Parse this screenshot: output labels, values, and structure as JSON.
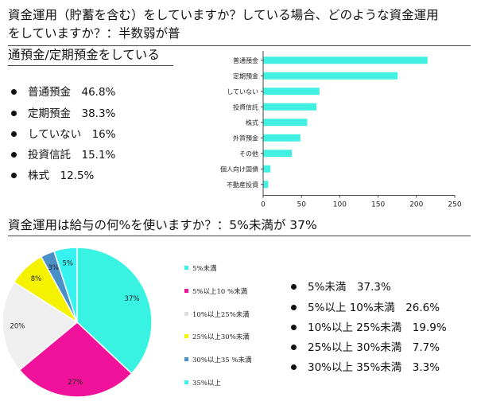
{
  "section1": {
    "heading_lines": [
      "資金運用（貯蓄を含む）をしていますか？している場合、どのような資金運用",
      "をしていますか？：半数弱が普",
      "通預金/定期預金をしている"
    ],
    "bullets": [
      "普通預金　46.8%",
      "定期預金　38.3%",
      "していない　16%",
      "投資信託　15.1%",
      "株式　12.5%"
    ]
  },
  "section2": {
    "heading": "資金運用は給与の何%を使いますか？：5%未満が 37%",
    "bullets": [
      "5%未満　37.3%",
      "5%以上 10%未満　26.6%",
      "10%以上 25%未満　19.9%",
      "25%以上 30%未満　7.7%",
      "30%以上 35%未満　3.3%"
    ]
  },
  "chart_data": [
    {
      "type": "bar",
      "orientation": "horizontal",
      "categories": [
        "普通預金",
        "定期預金",
        "していない",
        "投資信託",
        "株式",
        "外貨預金",
        "その他",
        "個人向け国債",
        "不動産投資"
      ],
      "values": [
        214,
        175,
        73,
        69,
        57,
        48,
        37,
        9,
        6
      ],
      "xlim": [
        0,
        250
      ],
      "xticks": [
        0,
        50,
        100,
        150,
        200,
        250
      ],
      "color": "#40F0E0",
      "grid": false
    },
    {
      "type": "pie",
      "labels": [
        "5%未満",
        "5%以上10 %未満",
        "10%以上25%未満",
        "25%以上30%未満",
        "30%以上35 %未満",
        "35%以上"
      ],
      "values": [
        37,
        27,
        20,
        8,
        3,
        5
      ],
      "slice_labels": [
        "37%",
        "27%",
        "20%",
        "8%",
        "3%",
        "5%"
      ],
      "colors": [
        "#38F2E2",
        "#F0129A",
        "#EFEFEF",
        "#F5F200",
        "#4A90C8",
        "#38F2F0"
      ],
      "legend_position": "right"
    }
  ]
}
